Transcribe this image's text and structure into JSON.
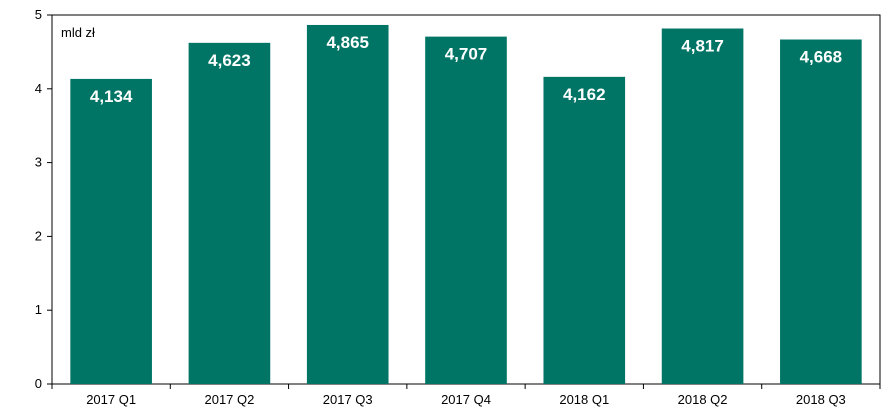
{
  "chart_data": {
    "type": "bar",
    "unit_label": "mld zł",
    "categories": [
      "2017 Q1",
      "2017 Q2",
      "2017 Q3",
      "2017 Q4",
      "2018 Q1",
      "2018 Q2",
      "2018 Q3"
    ],
    "values": [
      4.134,
      4.623,
      4.865,
      4.707,
      4.162,
      4.817,
      4.668
    ],
    "value_labels": [
      "4,134",
      "4,623",
      "4,865",
      "4,707",
      "4,162",
      "4,817",
      "4,668"
    ],
    "yticks": [
      "0",
      "1",
      "2",
      "3",
      "4",
      "5"
    ],
    "ylim": [
      0,
      5
    ],
    "grid": false,
    "legend": "none",
    "bar_color": "#007565",
    "label_color": "#ffffff"
  }
}
